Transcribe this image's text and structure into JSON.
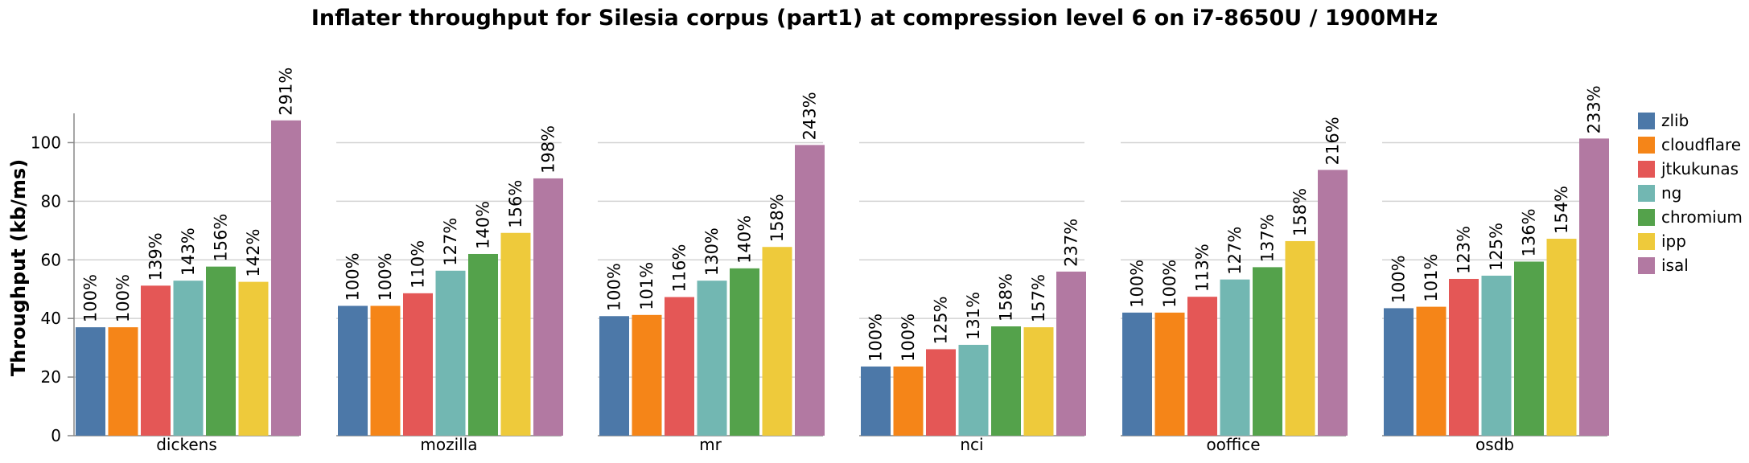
{
  "chart_data": {
    "type": "bar",
    "title": "Inflater throughput for Silesia corpus (part1) at compression level 6 on i7-8650U / 1900MHz",
    "ylabel": "Throughput (kb/ms)",
    "xlabel": "",
    "ylim": [
      0,
      110
    ],
    "yticks": [
      0,
      20,
      40,
      60,
      80,
      100
    ],
    "grid": true,
    "legend_position": "right",
    "categories": [
      "dickens",
      "mozilla",
      "mr",
      "nci",
      "ooffice",
      "osdb"
    ],
    "series": [
      {
        "name": "zlib",
        "color": "#4c78a8",
        "values": [
          37.0,
          44.3,
          40.8,
          23.6,
          42.0,
          43.5
        ],
        "labels": [
          "100%",
          "100%",
          "100%",
          "100%",
          "100%",
          "100%"
        ]
      },
      {
        "name": "cloudflare",
        "color": "#f58518",
        "values": [
          37.0,
          44.3,
          41.2,
          23.6,
          42.0,
          44.0
        ],
        "labels": [
          "100%",
          "100%",
          "101%",
          "100%",
          "100%",
          "101%"
        ]
      },
      {
        "name": "jtkukunas",
        "color": "#e45756",
        "values": [
          51.2,
          48.6,
          47.3,
          29.5,
          47.4,
          53.5
        ],
        "labels": [
          "139%",
          "110%",
          "116%",
          "125%",
          "113%",
          "123%"
        ]
      },
      {
        "name": "ng",
        "color": "#72b7b2",
        "values": [
          52.9,
          56.3,
          52.9,
          31.0,
          53.3,
          54.6
        ],
        "labels": [
          "143%",
          "127%",
          "130%",
          "131%",
          "127%",
          "125%"
        ]
      },
      {
        "name": "chromium",
        "color": "#54a24b",
        "values": [
          57.7,
          62.0,
          57.1,
          37.3,
          57.5,
          59.4
        ],
        "labels": [
          "156%",
          "140%",
          "140%",
          "158%",
          "137%",
          "136%"
        ]
      },
      {
        "name": "ipp",
        "color": "#eeca3b",
        "values": [
          52.5,
          69.2,
          64.4,
          37.0,
          66.4,
          67.2
        ],
        "labels": [
          "142%",
          "156%",
          "158%",
          "157%",
          "158%",
          "154%"
        ]
      },
      {
        "name": "isal",
        "color": "#b279a2",
        "values": [
          107.6,
          87.8,
          99.2,
          56.0,
          90.7,
          101.4
        ],
        "labels": [
          "291%",
          "198%",
          "243%",
          "237%",
          "216%",
          "233%"
        ]
      }
    ]
  }
}
